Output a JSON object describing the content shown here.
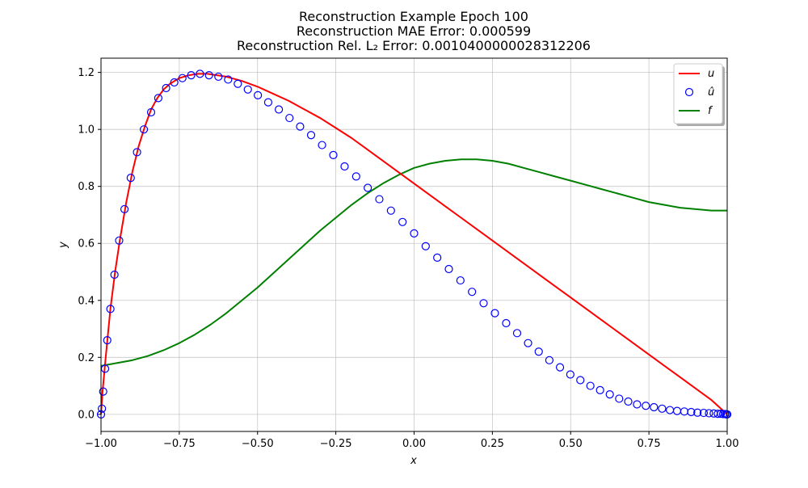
{
  "chart_data": {
    "type": "line",
    "title_lines": [
      "Reconstruction Example Epoch 100",
      "Reconstruction MAE Error: 0.000599",
      "Reconstruction Rel. L₂ Error: 0.0010400000028312206"
    ],
    "xlabel": "x",
    "ylabel": "y",
    "xlim": [
      -1.0,
      1.0
    ],
    "ylim": [
      -0.06,
      1.25
    ],
    "grid": true,
    "legend_position": "top-right",
    "x_ticks": [
      -1.0,
      -0.75,
      -0.5,
      -0.25,
      0.0,
      0.25,
      0.5,
      0.75,
      1.0
    ],
    "x_tick_labels": [
      "−1.00",
      "−0.75",
      "−0.50",
      "−0.25",
      "0.00",
      "0.25",
      "0.50",
      "0.75",
      "1.00"
    ],
    "y_ticks": [
      0.0,
      0.2,
      0.4,
      0.6,
      0.8,
      1.0,
      1.2
    ],
    "y_tick_labels": [
      "0.0",
      "0.2",
      "0.4",
      "0.6",
      "0.8",
      "1.0",
      "1.2"
    ],
    "series": [
      {
        "name": "u",
        "kind": "line",
        "color": "#ff0000",
        "x": [
          -1.0,
          -0.995,
          -0.985,
          -0.97,
          -0.955,
          -0.94,
          -0.92,
          -0.9,
          -0.88,
          -0.86,
          -0.84,
          -0.82,
          -0.8,
          -0.78,
          -0.75,
          -0.72,
          -0.69,
          -0.66,
          -0.63,
          -0.6,
          -0.55,
          -0.5,
          -0.45,
          -0.4,
          -0.35,
          -0.3,
          -0.25,
          -0.2,
          -0.15,
          -0.1,
          -0.05,
          0.0,
          0.05,
          0.1,
          0.15,
          0.2,
          0.25,
          0.3,
          0.35,
          0.4,
          0.45,
          0.5,
          0.55,
          0.6,
          0.65,
          0.7,
          0.75,
          0.8,
          0.85,
          0.9,
          0.95,
          0.98,
          1.0
        ],
        "y": [
          0.0,
          0.08,
          0.2,
          0.37,
          0.5,
          0.61,
          0.74,
          0.85,
          0.94,
          1.01,
          1.07,
          1.11,
          1.14,
          1.16,
          1.18,
          1.19,
          1.195,
          1.195,
          1.19,
          1.185,
          1.17,
          1.15,
          1.125,
          1.1,
          1.07,
          1.04,
          1.005,
          0.97,
          0.93,
          0.89,
          0.85,
          0.81,
          0.77,
          0.73,
          0.69,
          0.65,
          0.61,
          0.57,
          0.53,
          0.49,
          0.45,
          0.41,
          0.37,
          0.33,
          0.29,
          0.25,
          0.21,
          0.17,
          0.13,
          0.09,
          0.05,
          0.02,
          0.0
        ]
      },
      {
        "name": "û",
        "kind": "scatter",
        "color": "#0000ff",
        "x": [
          -1.0,
          -0.997,
          -0.993,
          -0.987,
          -0.98,
          -0.97,
          -0.957,
          -0.942,
          -0.925,
          -0.905,
          -0.885,
          -0.863,
          -0.84,
          -0.817,
          -0.792,
          -0.766,
          -0.74,
          -0.712,
          -0.684,
          -0.655,
          -0.625,
          -0.594,
          -0.563,
          -0.531,
          -0.499,
          -0.466,
          -0.432,
          -0.398,
          -0.364,
          -0.329,
          -0.294,
          -0.258,
          -0.222,
          -0.185,
          -0.148,
          -0.111,
          -0.074,
          -0.037,
          0.0,
          0.037,
          0.074,
          0.111,
          0.148,
          0.185,
          0.222,
          0.258,
          0.294,
          0.329,
          0.364,
          0.398,
          0.432,
          0.466,
          0.499,
          0.531,
          0.563,
          0.594,
          0.625,
          0.655,
          0.684,
          0.712,
          0.74,
          0.766,
          0.792,
          0.817,
          0.84,
          0.863,
          0.885,
          0.905,
          0.925,
          0.942,
          0.957,
          0.97,
          0.98,
          0.987,
          0.993,
          0.997,
          1.0
        ],
        "y": [
          0.0,
          0.02,
          0.08,
          0.16,
          0.26,
          0.37,
          0.49,
          0.61,
          0.72,
          0.83,
          0.92,
          1.0,
          1.06,
          1.11,
          1.145,
          1.165,
          1.18,
          1.19,
          1.195,
          1.19,
          1.185,
          1.175,
          1.16,
          1.14,
          1.12,
          1.095,
          1.07,
          1.04,
          1.01,
          0.98,
          0.945,
          0.91,
          0.87,
          0.835,
          0.795,
          0.755,
          0.715,
          0.675,
          0.635,
          0.59,
          0.55,
          0.51,
          0.47,
          0.43,
          0.39,
          0.355,
          0.32,
          0.285,
          0.25,
          0.22,
          0.19,
          0.165,
          0.14,
          0.12,
          0.1,
          0.085,
          0.07,
          0.055,
          0.045,
          0.035,
          0.03,
          0.025,
          0.02,
          0.015,
          0.012,
          0.01,
          0.008,
          0.006,
          0.005,
          0.004,
          0.003,
          0.002,
          0.002,
          0.001,
          0.001,
          0.0,
          0.0
        ]
      },
      {
        "name": "f",
        "kind": "line",
        "color": "#008000",
        "x": [
          -1.0,
          -0.95,
          -0.9,
          -0.85,
          -0.8,
          -0.75,
          -0.7,
          -0.65,
          -0.6,
          -0.55,
          -0.5,
          -0.45,
          -0.4,
          -0.35,
          -0.3,
          -0.25,
          -0.2,
          -0.15,
          -0.1,
          -0.05,
          0.0,
          0.05,
          0.1,
          0.15,
          0.2,
          0.25,
          0.3,
          0.35,
          0.4,
          0.45,
          0.5,
          0.55,
          0.6,
          0.65,
          0.7,
          0.75,
          0.8,
          0.85,
          0.9,
          0.95,
          1.0
        ],
        "y": [
          0.17,
          0.18,
          0.19,
          0.205,
          0.225,
          0.25,
          0.28,
          0.315,
          0.355,
          0.4,
          0.445,
          0.495,
          0.545,
          0.595,
          0.645,
          0.69,
          0.735,
          0.775,
          0.81,
          0.84,
          0.865,
          0.88,
          0.89,
          0.895,
          0.895,
          0.89,
          0.88,
          0.865,
          0.85,
          0.835,
          0.82,
          0.805,
          0.79,
          0.775,
          0.76,
          0.745,
          0.735,
          0.725,
          0.72,
          0.715,
          0.715
        ]
      }
    ]
  }
}
